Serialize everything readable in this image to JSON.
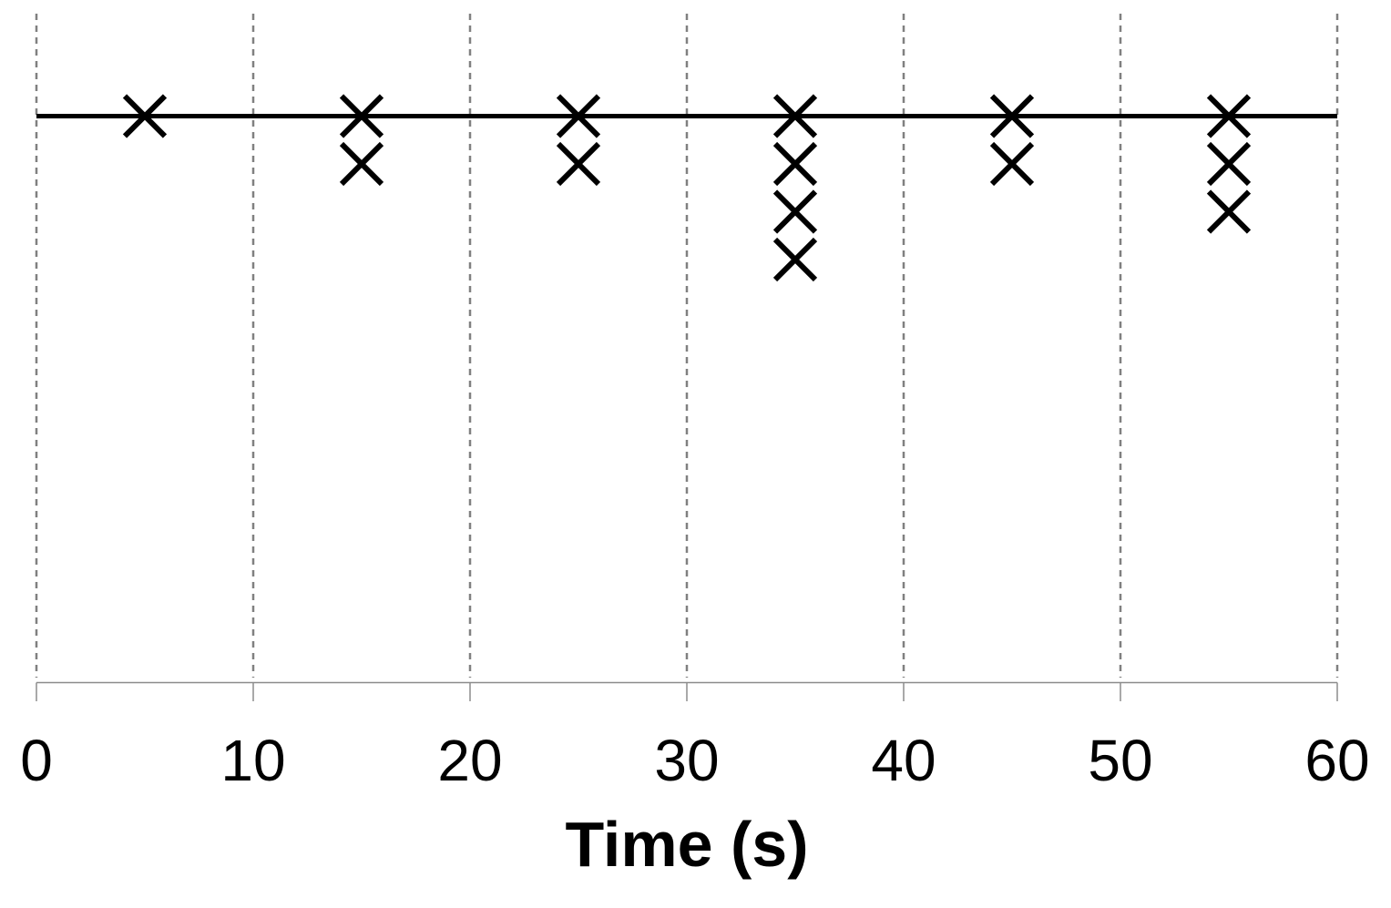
{
  "chart_data": {
    "type": "scatter",
    "subtype": "dot-plot-x-markers",
    "title": "",
    "xlabel": "Time (s)",
    "ylabel": "",
    "xlim": [
      0,
      60
    ],
    "x_ticks": [
      0,
      10,
      20,
      30,
      40,
      50,
      60
    ],
    "x_tick_labels": [
      "0",
      "10",
      "20",
      "30",
      "40",
      "50",
      "60"
    ],
    "grid": "vertical-dashed",
    "legend": "none",
    "marker": "x",
    "stack_direction": "down-from-reference-line",
    "reference_line": {
      "present": true,
      "at_row": 0,
      "description": "solid black horizontal line passing through the top row of markers, spanning the full x range"
    },
    "points": [
      {
        "x": 5,
        "count": 1
      },
      {
        "x": 15,
        "count": 2
      },
      {
        "x": 25,
        "count": 2
      },
      {
        "x": 35,
        "count": 4
      },
      {
        "x": 45,
        "count": 2
      },
      {
        "x": 55,
        "count": 3
      }
    ],
    "colors": {
      "marker": "#000000",
      "reference_line": "#000000",
      "gridline": "#808080",
      "axis_line": "#8c8c8c",
      "tick_mark": "#8c8c8c",
      "tick_label": "#000000",
      "axis_title": "#000000",
      "background": "#ffffff"
    }
  }
}
